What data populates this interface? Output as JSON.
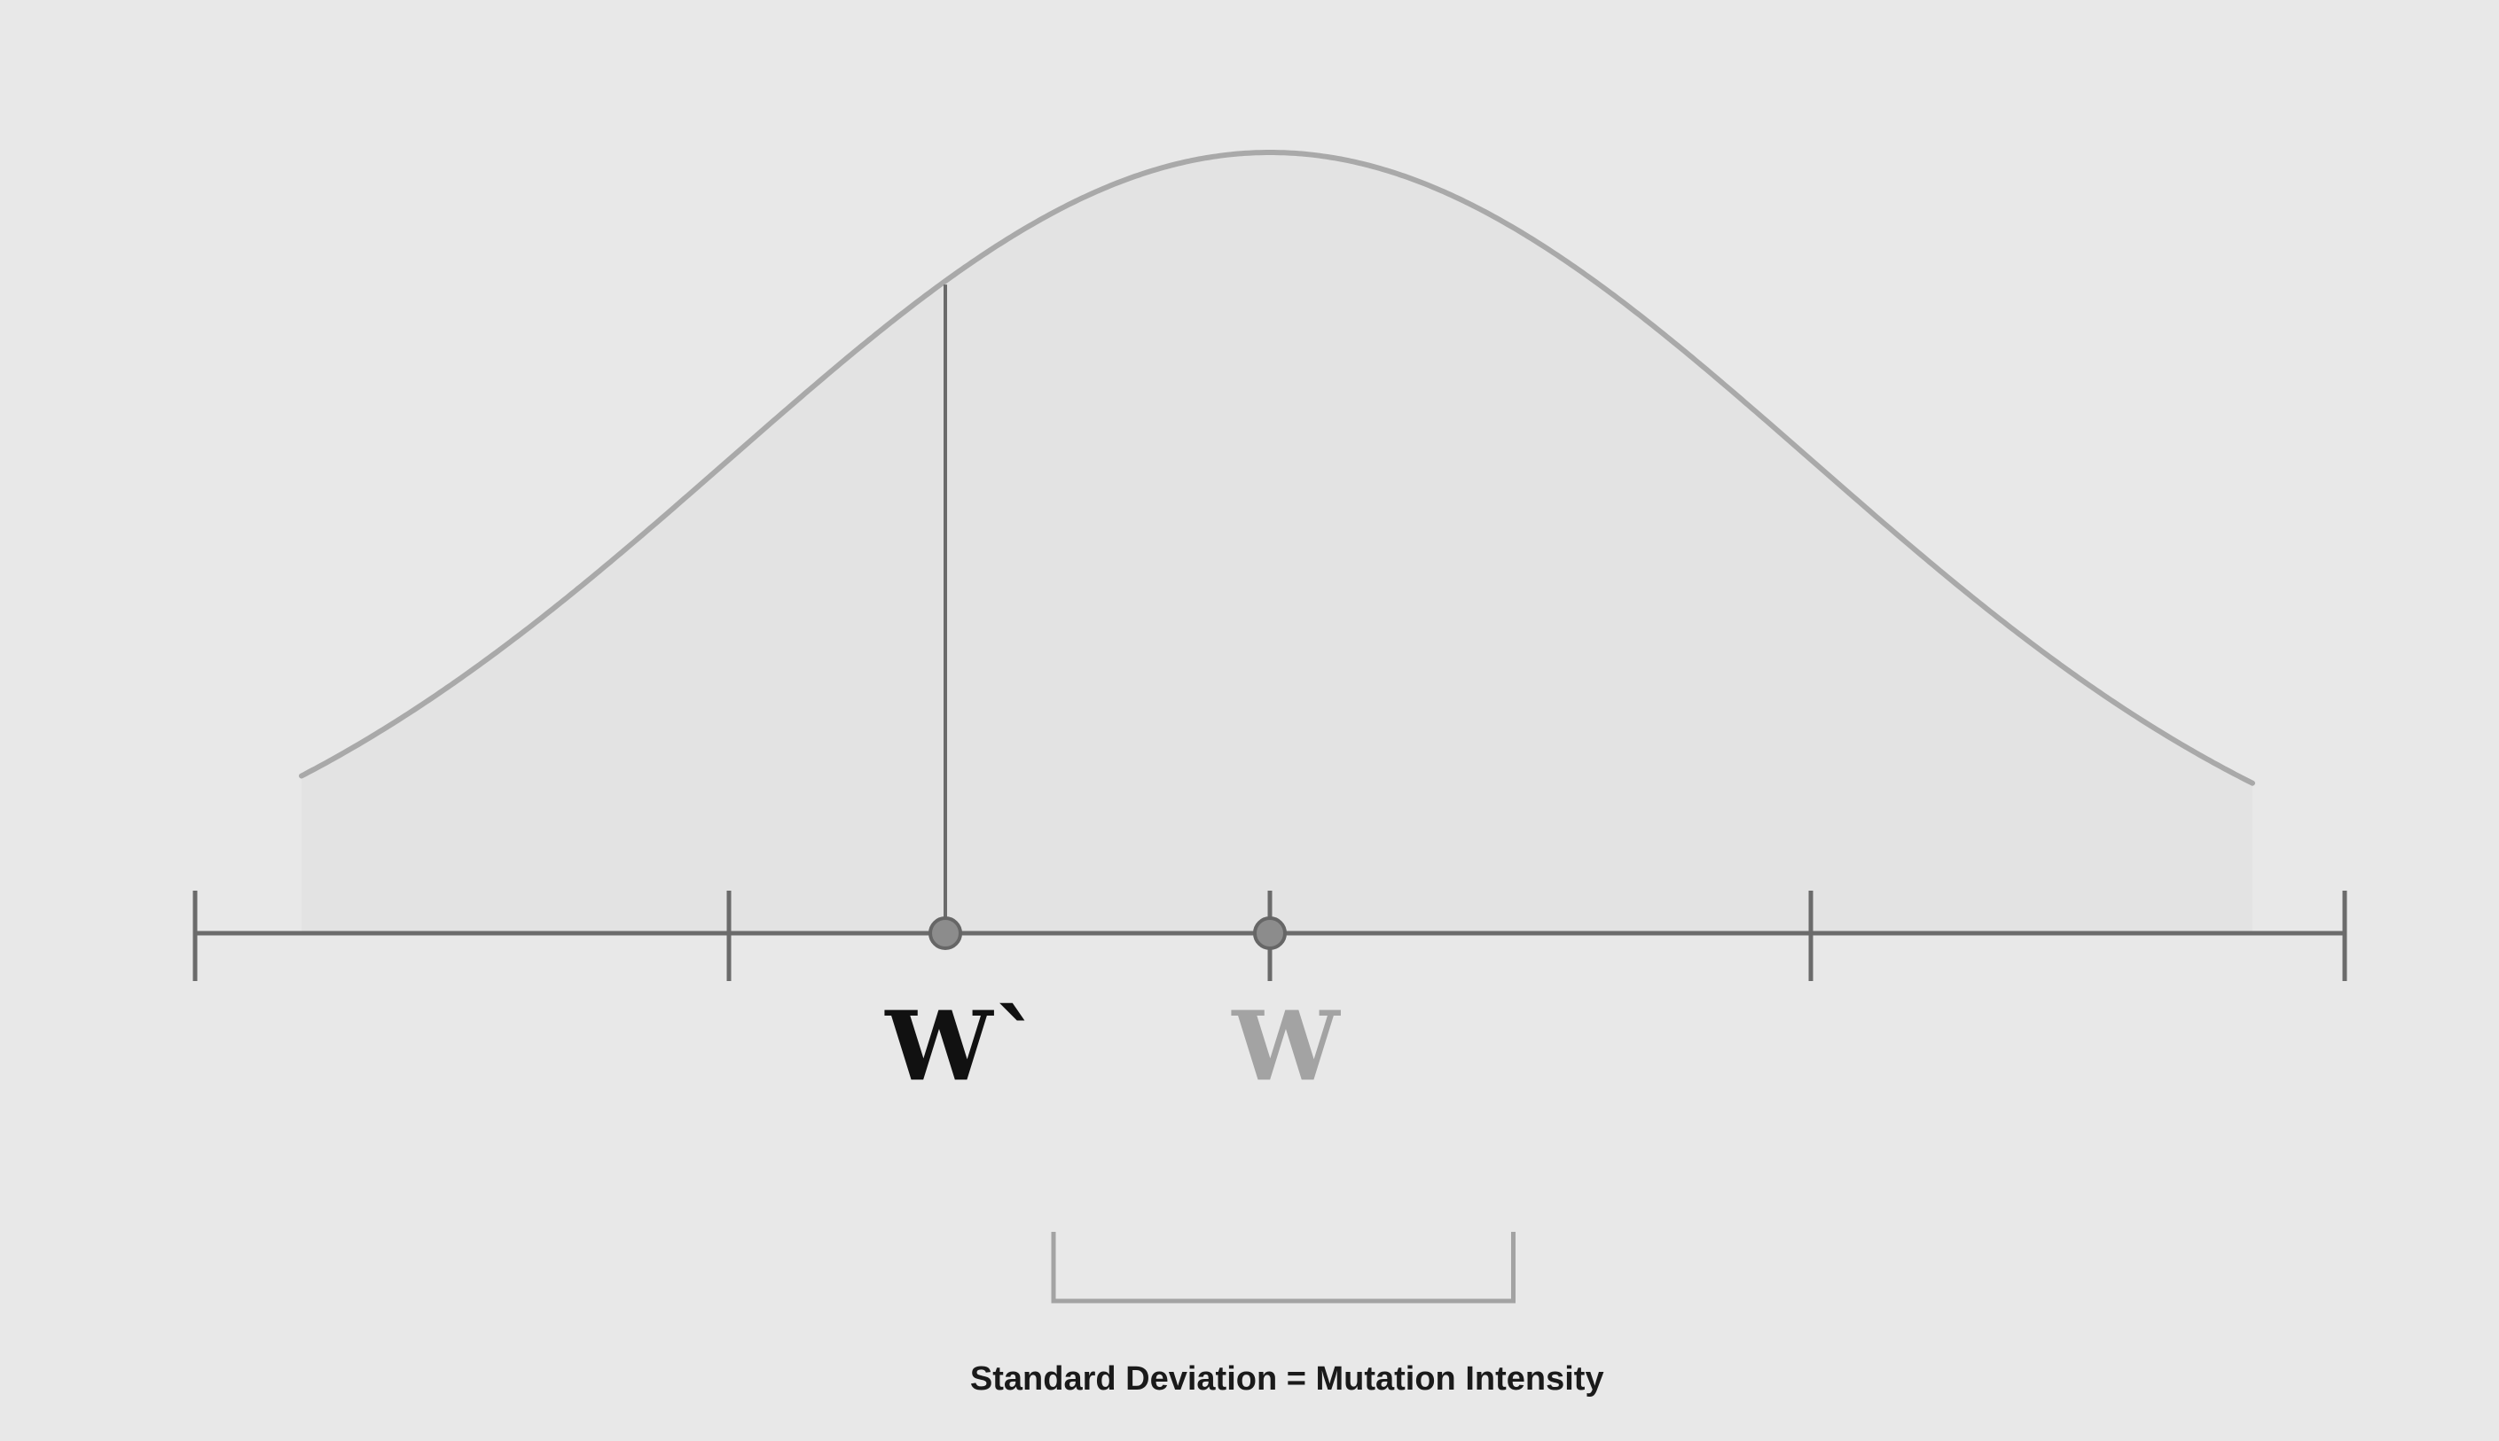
{
  "labels": {
    "mutated_weight": "W`",
    "original_weight": "W",
    "caption": "Standard Deviation = Mutation Intensity"
  },
  "colors": {
    "background": "#e8e8e8",
    "curve": "#a9a9a9",
    "curve_fill": "#e3e3e3",
    "axis": "#6b6b6b",
    "point_fill": "#8c8c8c",
    "point_stroke": "#666666",
    "mutated_label": "#111111",
    "original_label": "#a3a3a3",
    "bracket": "#a3a3a3",
    "caption": "#1a1a1a"
  },
  "distribution": {
    "type": "normal",
    "mean": 0,
    "sd": 1,
    "tick_positions_sd": [
      -2,
      -1,
      0,
      1,
      2
    ],
    "mutated_value_sd": -0.6,
    "original_value_sd": 0,
    "bracket_range_sd": [
      -0.4,
      0.45
    ]
  }
}
